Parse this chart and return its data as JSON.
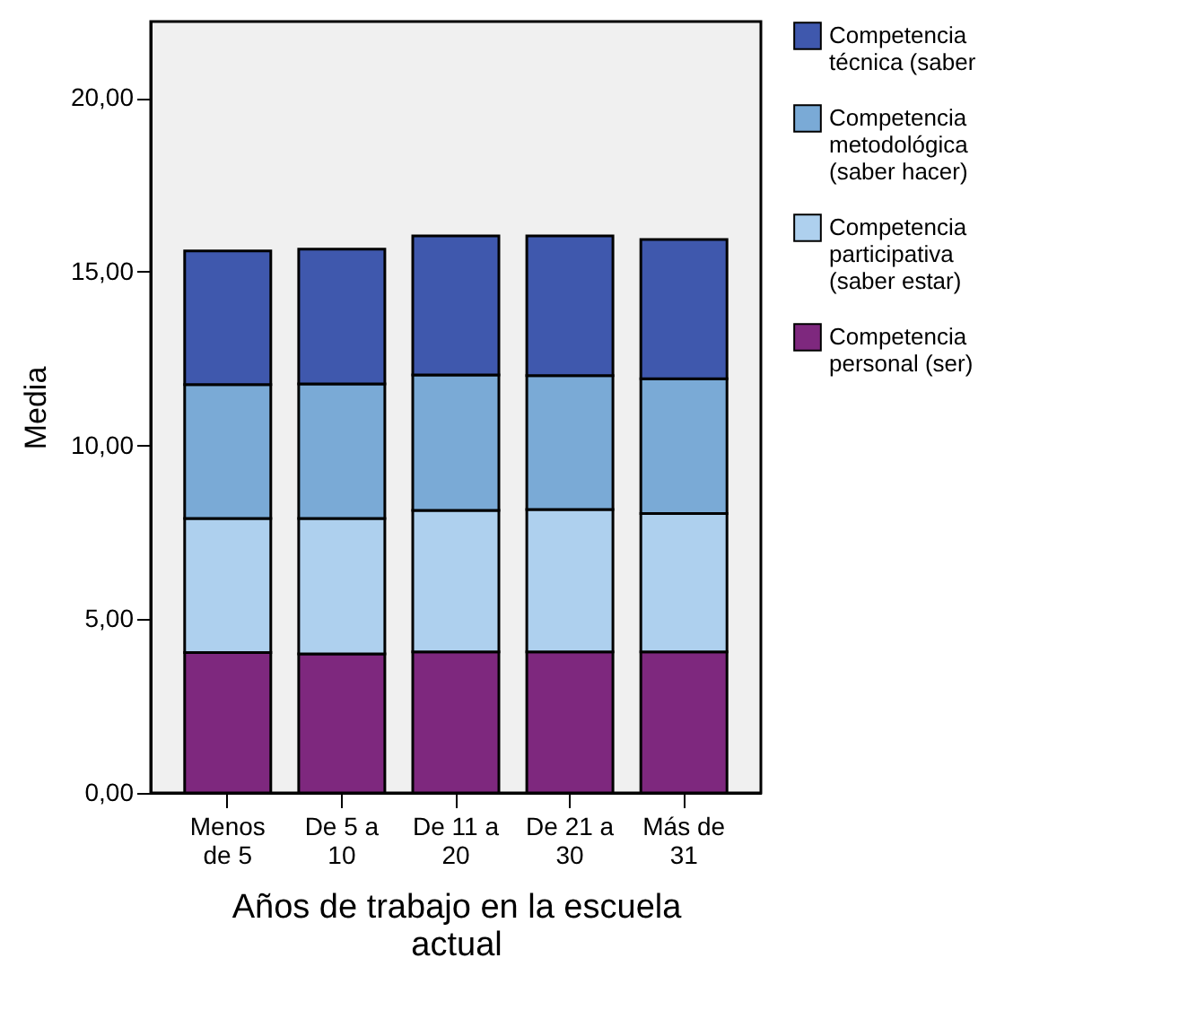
{
  "chart_data": {
    "type": "bar",
    "stacked": true,
    "xlabel": "Años de trabajo en la escuela actual",
    "ylabel": "Media",
    "categories": [
      "Menos de 5",
      "De 5 a 10",
      "De 11 a 20",
      "De 21 a 30",
      "Más de 31"
    ],
    "series": [
      {
        "name": "Competencia personal (ser)",
        "color": "#7e287e",
        "values": [
          4.04,
          4.0,
          4.06,
          4.06,
          4.06
        ]
      },
      {
        "name": "Competencia participativa (saber estar)",
        "color": "#aed0ee",
        "values": [
          3.86,
          3.9,
          4.07,
          4.1,
          3.98
        ]
      },
      {
        "name": "Competencia metodológica (saber hacer)",
        "color": "#7aaad6",
        "values": [
          3.85,
          3.87,
          3.9,
          3.85,
          3.88
        ]
      },
      {
        "name": "Competencia técnica (saber",
        "color": "#3f58ad",
        "values": [
          3.85,
          3.88,
          4.0,
          4.02,
          4.01
        ]
      }
    ],
    "ylim": [
      0,
      22.2
    ],
    "yticks": [
      {
        "value": 0,
        "label": "0,00"
      },
      {
        "value": 5,
        "label": "5,00"
      },
      {
        "value": 10,
        "label": "10,00"
      },
      {
        "value": 15,
        "label": "15,00"
      },
      {
        "value": 20,
        "label": "20,00"
      }
    ],
    "grid": false,
    "legend": "top right"
  }
}
